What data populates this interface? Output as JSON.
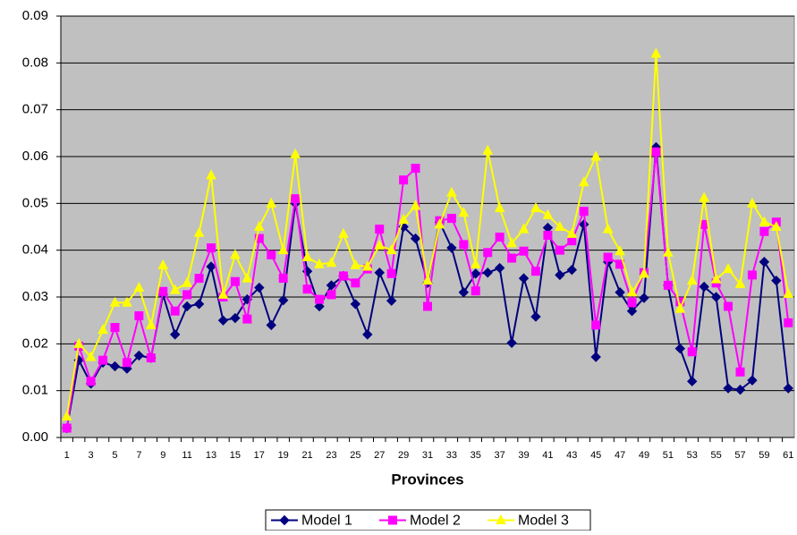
{
  "chart_data": {
    "type": "line",
    "x_label": "Provinces",
    "categories": [
      "1",
      null,
      "3",
      null,
      "5",
      null,
      "7",
      null,
      "9",
      null,
      "11",
      null,
      "13",
      null,
      "15",
      null,
      "17",
      null,
      "19",
      null,
      "21",
      null,
      "23",
      null,
      "25",
      null,
      "27",
      null,
      "29",
      null,
      "31",
      null,
      "33",
      null,
      "35",
      null,
      "37",
      null,
      "39",
      null,
      "41",
      null,
      "43",
      null,
      "45",
      null,
      "47",
      null,
      "49",
      null,
      "51",
      null,
      "53",
      null,
      "55",
      null,
      "57",
      null,
      "59",
      null,
      "61"
    ],
    "series": [
      {
        "name": "Model 1",
        "color": "#000080",
        "marker": "diamond",
        "values": [
          0.002,
          0.0165,
          0.0115,
          0.016,
          0.0152,
          0.0147,
          0.0175,
          0.017,
          0.0305,
          0.022,
          0.028,
          0.0285,
          0.0365,
          0.025,
          0.0255,
          0.0295,
          0.032,
          0.024,
          0.0293,
          0.05,
          0.0355,
          0.028,
          0.0325,
          0.0345,
          0.0285,
          0.022,
          0.0352,
          0.0292,
          0.045,
          0.0425,
          0.033,
          0.046,
          0.0405,
          0.031,
          0.035,
          0.0352,
          0.0362,
          0.0202,
          0.034,
          0.0258,
          0.0448,
          0.0347,
          0.0358,
          0.0455,
          0.0172,
          0.0375,
          0.031,
          0.027,
          0.0298,
          0.062,
          0.0325,
          0.019,
          0.012,
          0.0322,
          0.03,
          0.0105,
          0.0102,
          0.0122,
          0.0375,
          0.0335,
          0.0105
        ]
      },
      {
        "name": "Model 2",
        "color": "#ff00ff",
        "marker": "square",
        "values": [
          0.002,
          0.0195,
          0.012,
          0.0165,
          0.0235,
          0.016,
          0.026,
          0.017,
          0.0312,
          0.027,
          0.0305,
          0.034,
          0.0405,
          0.03,
          0.0333,
          0.0253,
          0.0425,
          0.039,
          0.034,
          0.051,
          0.0317,
          0.0295,
          0.0305,
          0.0345,
          0.033,
          0.036,
          0.0445,
          0.035,
          0.055,
          0.0575,
          0.028,
          0.0463,
          0.0468,
          0.0412,
          0.0313,
          0.0395,
          0.0428,
          0.0383,
          0.0398,
          0.0355,
          0.0432,
          0.04,
          0.042,
          0.0483,
          0.024,
          0.0385,
          0.037,
          0.0288,
          0.0352,
          0.061,
          0.0325,
          0.029,
          0.0183,
          0.0455,
          0.033,
          0.028,
          0.014,
          0.0347,
          0.044,
          0.046,
          0.0245
        ]
      },
      {
        "name": "Model 3",
        "color": "#ffff00",
        "marker": "triangle",
        "values": [
          0.0045,
          0.02,
          0.0172,
          0.023,
          0.0288,
          0.0288,
          0.032,
          0.024,
          0.0368,
          0.0315,
          0.033,
          0.0437,
          0.056,
          0.0305,
          0.039,
          0.034,
          0.045,
          0.05,
          0.04,
          0.0605,
          0.0385,
          0.037,
          0.0373,
          0.0435,
          0.0368,
          0.0365,
          0.041,
          0.04,
          0.0465,
          0.0495,
          0.0335,
          0.0455,
          0.0523,
          0.048,
          0.037,
          0.0613,
          0.049,
          0.0415,
          0.0445,
          0.049,
          0.0475,
          0.045,
          0.0435,
          0.0545,
          0.06,
          0.0445,
          0.0398,
          0.031,
          0.035,
          0.082,
          0.0395,
          0.0275,
          0.0335,
          0.0512,
          0.0338,
          0.036,
          0.0328,
          0.05,
          0.046,
          0.045,
          0.0307
        ]
      }
    ],
    "ylim": [
      0,
      0.09
    ],
    "yticks": [
      {
        "value": 0,
        "label": "0.00"
      },
      0.01,
      0.02,
      0.03,
      0.04,
      0.05,
      0.06,
      0.07,
      0.08,
      0.09
    ],
    "grid": true,
    "legend": "bottom",
    "plot_background": "#c0c0c0"
  }
}
